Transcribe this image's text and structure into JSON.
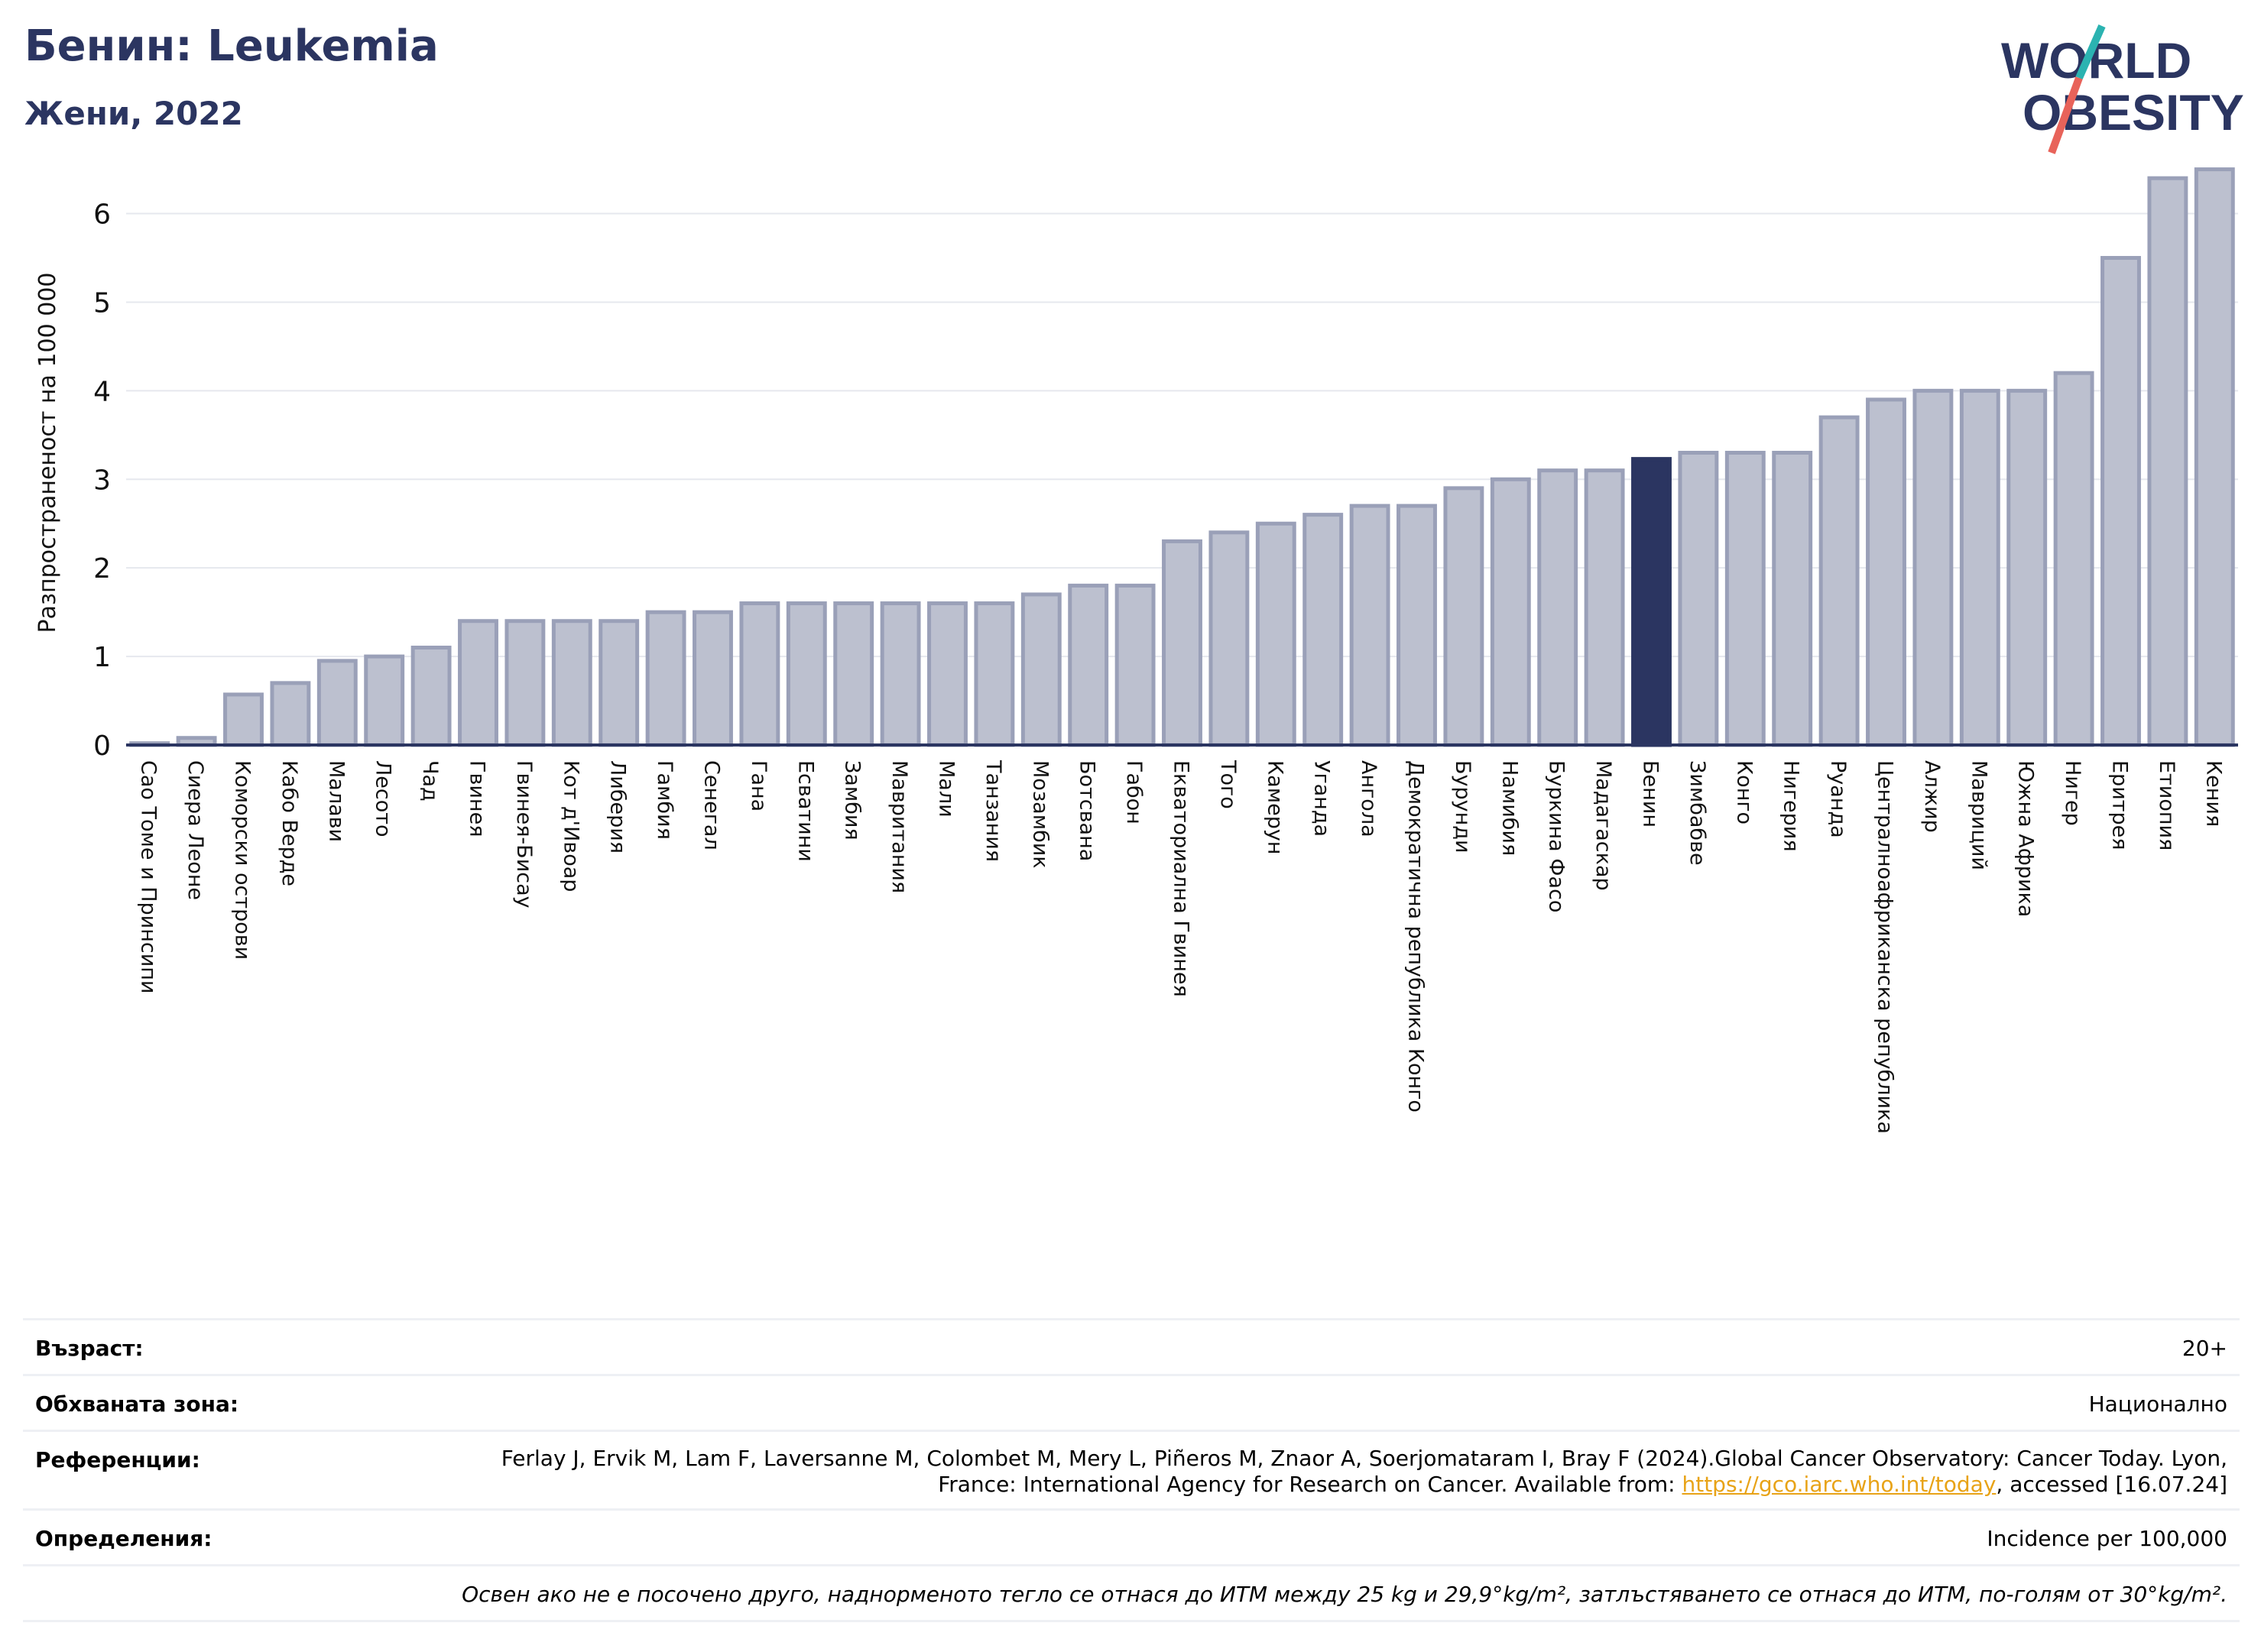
{
  "header": {
    "title": "Бенин: Leukemia",
    "subtitle": "Жени, 2022"
  },
  "logo": {
    "line1": "WORLD",
    "line2": "OBESITY",
    "colors": {
      "text": "#2b3561",
      "slash_top": "#2bb3b1",
      "slash_bottom": "#e8635a"
    }
  },
  "chart_data": {
    "type": "bar",
    "ylabel": "Разпространеност  на 100 000",
    "ylim": [
      0,
      6.6
    ],
    "yticks": [
      0,
      1,
      2,
      3,
      4,
      5,
      6
    ],
    "grid": true,
    "highlight": "Бенин",
    "colors": {
      "bar": "#bcc0cf",
      "bar_edge": "#9aa0b8",
      "highlight": "#2b3561",
      "axis": "#2b3561",
      "grid": "#e6e8ee"
    },
    "categories": [
      "Сао Томе и Принсипи",
      "Сиера Леоне",
      "Коморски острови",
      "Кабо Верде",
      "Малави",
      "Лесото",
      "Чад",
      "Гвинея",
      "Гвинея-Бисау",
      "Кот д'Ивоар",
      "Либерия",
      "Гамбия",
      "Сенегал",
      "Гана",
      "Есватини",
      "Замбия",
      "Мавритания",
      "Мали",
      "Танзания",
      "Мозамбик",
      "Ботсвана",
      "Габон",
      "Екваториална Гвинея",
      "Того",
      "Камерун",
      "Уганда",
      "Ангола",
      "Демократична република Конго",
      "Бурунди",
      "Намибия",
      "Буркина Фасо",
      "Мадагаскар",
      "Бенин",
      "Зимбабве",
      "Конго",
      "Нигерия",
      "Руанда",
      "Централноафриканска република",
      "Алжир",
      "Мавриций",
      "Южна Африка",
      "Нигер",
      "Еритрея",
      "Етиопия",
      "Кения"
    ],
    "values": [
      0.02,
      0.08,
      0.57,
      0.7,
      0.95,
      1.0,
      1.1,
      1.4,
      1.4,
      1.4,
      1.4,
      1.5,
      1.5,
      1.6,
      1.6,
      1.6,
      1.6,
      1.6,
      1.6,
      1.7,
      1.8,
      1.8,
      2.3,
      2.4,
      2.5,
      2.6,
      2.7,
      2.7,
      2.9,
      3.0,
      3.1,
      3.1,
      3.23,
      3.3,
      3.3,
      3.3,
      3.7,
      3.9,
      4.0,
      4.0,
      4.0,
      4.2,
      5.5,
      6.4,
      6.5
    ]
  },
  "meta": {
    "age_label": "Възраст:",
    "age_value": "20+",
    "zone_label": "Обхваната зона:",
    "zone_value": "Национално",
    "ref_label": "Референции:",
    "ref_text_1": "Ferlay J, Ervik M, Lam F, Laversanne M, Colombet M, Mery L, Piñeros M, Znaor A, Soerjomataram I, Bray F (2024).Global Cancer Observatory: Cancer Today. Lyon, France: International Agency for Research on Cancer. Available from: ",
    "ref_link": "https://gco.iarc.who.int/today",
    "ref_text_2": ", accessed [16.07.24]",
    "def_label": "Определения:",
    "def_value": "Incidence per 100,000",
    "note": "Освен ако не е посочено друго, наднорменото тегло се отнася до ИТМ между 25 kg и 29,9°kg/m², затлъстяването се отнася до ИТМ, по-голям от 30°kg/m²."
  }
}
